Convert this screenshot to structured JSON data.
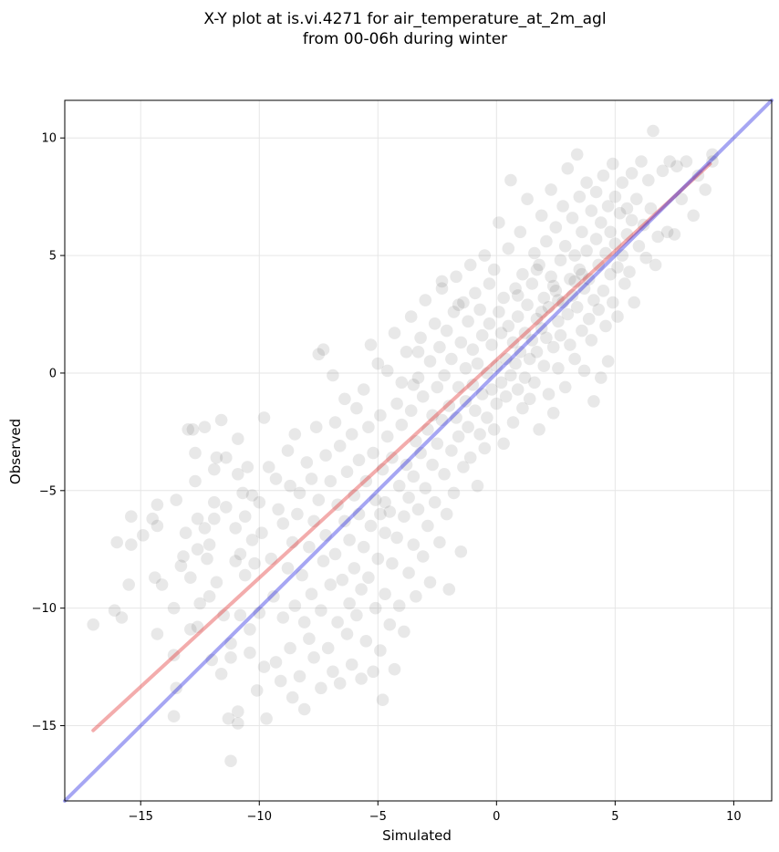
{
  "chart_data": {
    "type": "scatter",
    "title": [
      "X-Y plot at is.vi.4271 for air_temperature_at_2m_agl",
      "from 00-06h during winter"
    ],
    "xlabel": "Simulated",
    "ylabel": "Observed",
    "xlim": [
      -18.2,
      11.6
    ],
    "ylim": [
      -18.2,
      11.6
    ],
    "xticks": [
      -15,
      -10,
      -5,
      0,
      5,
      10
    ],
    "yticks": [
      -15,
      -10,
      -5,
      0,
      5,
      10
    ],
    "xtick_labels": [
      "−15",
      "−10",
      "−5",
      "0",
      "5",
      "10"
    ],
    "ytick_labels": [
      "−15",
      "−10",
      "−5",
      "0",
      "5",
      "10"
    ],
    "grid": true,
    "point_color": "#000000",
    "point_alpha": 0.09,
    "points": [
      [
        -17.0,
        -10.7
      ],
      [
        -15.8,
        -10.4
      ],
      [
        -16.1,
        -10.1
      ],
      [
        -15.5,
        -9.0
      ],
      [
        -16.0,
        -7.2
      ],
      [
        -15.4,
        -7.3
      ],
      [
        -15.4,
        -6.1
      ],
      [
        -14.9,
        -6.9
      ],
      [
        -14.5,
        -6.2
      ],
      [
        -14.3,
        -6.5
      ],
      [
        -14.3,
        -5.6
      ],
      [
        -14.4,
        -8.7
      ],
      [
        -14.1,
        -9.0
      ],
      [
        -14.3,
        -11.1
      ],
      [
        -13.6,
        -10.0
      ],
      [
        -13.6,
        -12.0
      ],
      [
        -13.5,
        -13.4
      ],
      [
        -13.6,
        -14.6
      ],
      [
        -13.5,
        -5.4
      ],
      [
        -13.3,
        -8.2
      ],
      [
        -13.2,
        -7.8
      ],
      [
        -13.1,
        -6.8
      ],
      [
        -13.0,
        -2.4
      ],
      [
        -12.8,
        -2.4
      ],
      [
        -12.7,
        -3.4
      ],
      [
        -12.7,
        -4.6
      ],
      [
        -12.6,
        -6.2
      ],
      [
        -12.6,
        -7.5
      ],
      [
        -12.9,
        -8.7
      ],
      [
        -12.9,
        -10.9
      ],
      [
        -12.6,
        -10.8
      ],
      [
        -12.5,
        -9.8
      ],
      [
        -12.3,
        -2.3
      ],
      [
        -12.3,
        -6.6
      ],
      [
        -12.2,
        -7.9
      ],
      [
        -12.1,
        -9.5
      ],
      [
        -12.0,
        -12.2
      ],
      [
        -12.1,
        -7.3
      ],
      [
        -11.9,
        -4.1
      ],
      [
        -11.9,
        -6.2
      ],
      [
        -11.9,
        -5.5
      ],
      [
        -11.8,
        -3.6
      ],
      [
        -11.8,
        -8.9
      ],
      [
        -11.6,
        -2.0
      ],
      [
        -11.4,
        -3.6
      ],
      [
        -11.4,
        -5.7
      ],
      [
        -11.5,
        -10.3
      ],
      [
        -11.6,
        -12.8
      ],
      [
        -11.3,
        -14.7
      ],
      [
        -11.2,
        -12.1
      ],
      [
        -11.2,
        -11.5
      ],
      [
        -11.0,
        -6.6
      ],
      [
        -11.0,
        -8.0
      ],
      [
        -10.9,
        -2.8
      ],
      [
        -10.9,
        -4.3
      ],
      [
        -10.9,
        -14.9
      ],
      [
        -10.9,
        -14.4
      ],
      [
        -10.8,
        -10.3
      ],
      [
        -10.8,
        -7.7
      ],
      [
        -10.7,
        -5.1
      ],
      [
        -10.6,
        -6.1
      ],
      [
        -10.6,
        -8.6
      ],
      [
        -10.5,
        -4.0
      ],
      [
        -10.4,
        -11.9
      ],
      [
        -10.4,
        -10.9
      ],
      [
        -10.3,
        -7.1
      ],
      [
        -10.3,
        -5.2
      ],
      [
        -10.2,
        -8.1
      ],
      [
        -10.1,
        -13.5
      ],
      [
        -10.0,
        -5.5
      ],
      [
        -10.0,
        -10.2
      ],
      [
        -9.9,
        -6.8
      ],
      [
        -9.8,
        -1.9
      ],
      [
        -9.8,
        -12.5
      ],
      [
        -9.7,
        -14.7
      ],
      [
        -9.6,
        -4.0
      ],
      [
        -9.5,
        -7.9
      ],
      [
        -9.4,
        -9.5
      ],
      [
        -9.3,
        -12.3
      ],
      [
        -9.3,
        -4.5
      ],
      [
        -9.2,
        -5.8
      ],
      [
        -9.1,
        -13.1
      ],
      [
        -9.0,
        -10.4
      ],
      [
        -9.0,
        -6.4
      ],
      [
        -8.8,
        -3.3
      ],
      [
        -8.8,
        -8.3
      ],
      [
        -8.7,
        -11.7
      ],
      [
        -8.7,
        -4.8
      ],
      [
        -8.6,
        -13.8
      ],
      [
        -8.6,
        -7.2
      ],
      [
        -8.5,
        -2.6
      ],
      [
        -8.5,
        -9.9
      ],
      [
        -8.4,
        -6.0
      ],
      [
        -8.3,
        -12.9
      ],
      [
        -8.3,
        -5.1
      ],
      [
        -8.2,
        -8.6
      ],
      [
        -8.1,
        -14.3
      ],
      [
        -8.1,
        -10.6
      ],
      [
        -8.0,
        -3.8
      ],
      [
        -7.9,
        -7.4
      ],
      [
        -7.9,
        -11.3
      ],
      [
        -7.8,
        -4.5
      ],
      [
        -7.8,
        -9.4
      ],
      [
        -7.7,
        -6.3
      ],
      [
        -7.7,
        -12.1
      ],
      [
        -7.6,
        -2.3
      ],
      [
        -7.5,
        -5.4
      ],
      [
        -7.5,
        0.8
      ],
      [
        -7.4,
        -10.1
      ],
      [
        -7.4,
        -13.4
      ],
      [
        -7.3,
        -8.0
      ],
      [
        -7.3,
        1.0
      ],
      [
        -7.2,
        -3.5
      ],
      [
        -7.2,
        -6.9
      ],
      [
        -7.1,
        -11.7
      ],
      [
        -7.0,
        -9.0
      ],
      [
        -7.0,
        -4.6
      ],
      [
        -6.9,
        -0.1
      ],
      [
        -6.9,
        -12.7
      ],
      [
        -6.8,
        -2.1
      ],
      [
        -6.8,
        -7.7
      ],
      [
        -6.7,
        -5.6
      ],
      [
        -6.7,
        -10.6
      ],
      [
        -6.6,
        -3.1
      ],
      [
        -6.6,
        -13.2
      ],
      [
        -6.5,
        -8.8
      ],
      [
        -6.4,
        -6.3
      ],
      [
        -6.4,
        -1.1
      ],
      [
        -6.3,
        -11.1
      ],
      [
        -6.3,
        -4.2
      ],
      [
        -6.2,
        -9.8
      ],
      [
        -6.2,
        -7.1
      ],
      [
        -6.1,
        -2.6
      ],
      [
        -6.1,
        -12.4
      ],
      [
        -6.0,
        -5.2
      ],
      [
        -6.0,
        -8.3
      ],
      [
        -5.9,
        -1.5
      ],
      [
        -5.9,
        -10.3
      ],
      [
        -5.8,
        -6.0
      ],
      [
        -5.8,
        -3.7
      ],
      [
        -5.7,
        -13.0
      ],
      [
        -5.7,
        -9.2
      ],
      [
        -5.6,
        -0.7
      ],
      [
        -5.6,
        -7.4
      ],
      [
        -5.5,
        -4.6
      ],
      [
        -5.5,
        -11.4
      ],
      [
        -5.4,
        -2.3
      ],
      [
        -5.4,
        -8.7
      ],
      [
        -5.3,
        1.2
      ],
      [
        -5.3,
        -6.5
      ],
      [
        -5.2,
        -12.7
      ],
      [
        -5.2,
        -3.4
      ],
      [
        -5.1,
        -10.0
      ],
      [
        -5.1,
        -5.4
      ],
      [
        -5.0,
        0.4
      ],
      [
        -5.0,
        -7.9
      ],
      [
        -4.9,
        -1.8
      ],
      [
        -4.9,
        -11.8
      ],
      [
        -4.8,
        -4.1
      ],
      [
        -4.8,
        -13.9
      ],
      [
        -4.7,
        -6.8
      ],
      [
        -4.7,
        -9.4
      ],
      [
        -4.6,
        -2.7
      ],
      [
        -4.6,
        0.1
      ],
      [
        -4.5,
        -5.9
      ],
      [
        -4.5,
        -10.7
      ],
      [
        -4.4,
        -3.6
      ],
      [
        -4.4,
        -8.1
      ],
      [
        -4.3,
        1.7
      ],
      [
        -4.3,
        -12.6
      ],
      [
        -4.2,
        -1.3
      ],
      [
        -4.2,
        -7.0
      ],
      [
        -4.1,
        -4.8
      ],
      [
        -4.1,
        -9.9
      ],
      [
        -4.0,
        -2.2
      ],
      [
        -4.0,
        -0.4
      ],
      [
        -3.9,
        -6.1
      ],
      [
        -3.9,
        -11.0
      ],
      [
        -3.8,
        0.9
      ],
      [
        -3.8,
        -3.9
      ],
      [
        -3.7,
        -8.5
      ],
      [
        -3.7,
        -5.3
      ],
      [
        -3.6,
        -1.6
      ],
      [
        -3.6,
        2.4
      ],
      [
        -3.5,
        -7.3
      ],
      [
        -3.5,
        -4.4
      ],
      [
        -3.4,
        -9.5
      ],
      [
        -3.4,
        -2.9
      ],
      [
        -3.3,
        -0.2
      ],
      [
        -3.3,
        -5.8
      ],
      [
        -3.2,
        1.5
      ],
      [
        -3.2,
        -3.4
      ],
      [
        -3.1,
        -7.8
      ],
      [
        -3.1,
        -1.0
      ],
      [
        -3.0,
        -4.9
      ],
      [
        -3.0,
        3.1
      ],
      [
        -2.9,
        -2.4
      ],
      [
        -2.9,
        -6.5
      ],
      [
        -2.8,
        0.5
      ],
      [
        -2.8,
        -8.9
      ],
      [
        -2.7,
        -3.9
      ],
      [
        -2.7,
        -1.8
      ],
      [
        -2.6,
        2.1
      ],
      [
        -2.6,
        -5.5
      ],
      [
        -2.5,
        -0.6
      ],
      [
        -2.5,
        -3.0
      ],
      [
        -2.4,
        1.1
      ],
      [
        -2.4,
        -7.2
      ],
      [
        -2.3,
        -2.0
      ],
      [
        -2.3,
        3.6
      ],
      [
        -2.2,
        -4.3
      ],
      [
        -2.2,
        -0.1
      ],
      [
        -2.1,
        -6.0
      ],
      [
        -2.1,
        1.8
      ],
      [
        -2.0,
        -1.4
      ],
      [
        -2.0,
        -9.2
      ],
      [
        -1.9,
        -3.3
      ],
      [
        -1.9,
        0.6
      ],
      [
        -1.8,
        2.6
      ],
      [
        -1.8,
        -5.1
      ],
      [
        -1.7,
        -1.9
      ],
      [
        -1.7,
        4.1
      ],
      [
        -1.6,
        -0.6
      ],
      [
        -1.6,
        -2.7
      ],
      [
        -1.5,
        1.3
      ],
      [
        -1.5,
        -7.6
      ],
      [
        -1.4,
        -4.0
      ],
      [
        -1.4,
        3.0
      ],
      [
        -1.3,
        -1.2
      ],
      [
        -1.3,
        0.2
      ],
      [
        -1.2,
        -2.3
      ],
      [
        -1.2,
        2.2
      ],
      [
        -1.1,
        -3.6
      ],
      [
        -1.1,
        4.6
      ],
      [
        -1.0,
        -0.5
      ],
      [
        -1.0,
        1.0
      ],
      [
        -0.9,
        -1.6
      ],
      [
        -0.9,
        3.4
      ],
      [
        -0.8,
        -4.8
      ],
      [
        -0.8,
        0.4
      ],
      [
        -0.7,
        -2.6
      ],
      [
        -0.7,
        2.7
      ],
      [
        -0.6,
        -0.9
      ],
      [
        -0.6,
        1.6
      ],
      [
        -0.5,
        -3.2
      ],
      [
        -0.5,
        5.0
      ],
      [
        -0.4,
        0.0
      ],
      [
        -0.4,
        -1.9
      ],
      [
        -0.3,
        2.1
      ],
      [
        -0.3,
        3.8
      ],
      [
        -0.2,
        -0.7
      ],
      [
        -0.2,
        1.2
      ],
      [
        -0.1,
        -2.4
      ],
      [
        -0.1,
        4.4
      ],
      [
        0.0,
        0.3
      ],
      [
        0.0,
        -1.3
      ],
      [
        0.1,
        2.6
      ],
      [
        0.1,
        6.4
      ],
      [
        0.2,
        -0.4
      ],
      [
        0.2,
        1.7
      ],
      [
        0.3,
        -3.0
      ],
      [
        0.3,
        3.2
      ],
      [
        0.4,
        0.6
      ],
      [
        0.4,
        -1.0
      ],
      [
        0.5,
        2.0
      ],
      [
        0.5,
        5.3
      ],
      [
        0.6,
        -0.1
      ],
      [
        0.6,
        8.2
      ],
      [
        0.7,
        1.3
      ],
      [
        0.7,
        -2.1
      ],
      [
        0.8,
        3.6
      ],
      [
        0.8,
        0.4
      ],
      [
        0.9,
        -0.7
      ],
      [
        0.9,
        2.4
      ],
      [
        1.0,
        6.0
      ],
      [
        1.0,
        0.9
      ],
      [
        1.1,
        -1.5
      ],
      [
        1.1,
        4.2
      ],
      [
        1.2,
        1.7
      ],
      [
        1.2,
        -0.2
      ],
      [
        1.3,
        2.9
      ],
      [
        1.3,
        7.4
      ],
      [
        1.4,
        0.6
      ],
      [
        1.4,
        -1.1
      ],
      [
        1.5,
        3.8
      ],
      [
        1.5,
        1.4
      ],
      [
        1.6,
        5.1
      ],
      [
        1.6,
        -0.4
      ],
      [
        1.7,
        2.3
      ],
      [
        1.7,
        0.9
      ],
      [
        1.8,
        4.6
      ],
      [
        1.8,
        -2.4
      ],
      [
        1.9,
        1.9
      ],
      [
        1.9,
        6.7
      ],
      [
        2.0,
        3.2
      ],
      [
        2.0,
        0.3
      ],
      [
        2.1,
        5.6
      ],
      [
        2.1,
        1.5
      ],
      [
        2.2,
        -0.9
      ],
      [
        2.2,
        2.8
      ],
      [
        2.3,
        7.8
      ],
      [
        2.3,
        4.1
      ],
      [
        2.4,
        1.1
      ],
      [
        2.4,
        -1.7
      ],
      [
        2.5,
        3.5
      ],
      [
        2.5,
        6.2
      ],
      [
        2.6,
        2.2
      ],
      [
        2.6,
        0.2
      ],
      [
        2.7,
        4.8
      ],
      [
        2.7,
        1.6
      ],
      [
        2.8,
        7.1
      ],
      [
        2.8,
        3.0
      ],
      [
        2.9,
        -0.6
      ],
      [
        2.9,
        5.4
      ],
      [
        3.0,
        2.5
      ],
      [
        3.0,
        8.7
      ],
      [
        3.1,
        4.0
      ],
      [
        3.1,
        1.2
      ],
      [
        3.2,
        6.6
      ],
      [
        3.2,
        3.3
      ],
      [
        3.3,
        0.6
      ],
      [
        3.3,
        5.0
      ],
      [
        3.4,
        9.3
      ],
      [
        3.4,
        2.8
      ],
      [
        3.5,
        7.5
      ],
      [
        3.5,
        4.4
      ],
      [
        3.6,
        1.8
      ],
      [
        3.6,
        6.0
      ],
      [
        3.7,
        3.6
      ],
      [
        3.7,
        0.1
      ],
      [
        3.8,
        8.1
      ],
      [
        3.8,
        5.2
      ],
      [
        3.9,
        2.3
      ],
      [
        3.9,
        4.0
      ],
      [
        4.0,
        6.9
      ],
      [
        4.0,
        1.4
      ],
      [
        4.1,
        3.1
      ],
      [
        4.1,
        -1.2
      ],
      [
        4.2,
        5.7
      ],
      [
        4.2,
        7.7
      ],
      [
        4.3,
        2.7
      ],
      [
        4.3,
        4.6
      ],
      [
        4.4,
        -0.2
      ],
      [
        4.4,
        6.4
      ],
      [
        4.5,
        3.5
      ],
      [
        4.5,
        8.4
      ],
      [
        4.6,
        5.1
      ],
      [
        4.6,
        2.0
      ],
      [
        4.7,
        7.1
      ],
      [
        4.7,
        0.5
      ],
      [
        4.8,
        4.2
      ],
      [
        4.8,
        6.0
      ],
      [
        4.9,
        3.0
      ],
      [
        4.9,
        8.9
      ],
      [
        5.0,
        5.5
      ],
      [
        5.0,
        7.5
      ],
      [
        5.1,
        4.5
      ],
      [
        5.1,
        2.4
      ],
      [
        5.2,
        6.8
      ],
      [
        5.3,
        5.0
      ],
      [
        5.3,
        8.1
      ],
      [
        5.4,
        3.8
      ],
      [
        5.5,
        7.0
      ],
      [
        5.5,
        5.9
      ],
      [
        5.6,
        4.3
      ],
      [
        5.7,
        8.5
      ],
      [
        5.7,
        6.5
      ],
      [
        5.8,
        3.0
      ],
      [
        5.9,
        7.4
      ],
      [
        6.0,
        5.4
      ],
      [
        6.1,
        9.0
      ],
      [
        6.2,
        6.3
      ],
      [
        6.3,
        4.9
      ],
      [
        6.4,
        8.2
      ],
      [
        6.5,
        7.0
      ],
      [
        6.6,
        10.3
      ],
      [
        6.7,
        4.6
      ],
      [
        6.8,
        5.8
      ],
      [
        7.0,
        8.6
      ],
      [
        7.2,
        6.0
      ],
      [
        7.3,
        9.0
      ],
      [
        7.5,
        5.9
      ],
      [
        7.6,
        8.8
      ],
      [
        7.8,
        7.4
      ],
      [
        8.0,
        9.0
      ],
      [
        8.3,
        6.7
      ],
      [
        8.5,
        8.4
      ],
      [
        8.8,
        7.8
      ],
      [
        9.1,
        9.0
      ],
      [
        9.1,
        9.3
      ],
      [
        -11.2,
        -16.5
      ],
      [
        -2.3,
        3.9
      ],
      [
        -1.6,
        2.9
      ],
      [
        -4.7,
        -5.5
      ],
      [
        -4.9,
        -6.0
      ],
      [
        -3.5,
        -0.5
      ],
      [
        -3.3,
        0.9
      ],
      [
        0.9,
        3.3
      ],
      [
        1.7,
        4.4
      ],
      [
        2.4,
        3.7
      ],
      [
        3.3,
        3.9
      ],
      [
        3.6,
        4.2
      ],
      [
        1.9,
        2.6
      ],
      [
        2.6,
        3.1
      ]
    ],
    "regression_line": {
      "name": "",
      "color": "#e03030",
      "alpha": 0.4,
      "x": [
        -17.0,
        9.0
      ],
      "y": [
        -15.2,
        8.9
      ]
    },
    "identity_line": {
      "name": "",
      "color": "#0000dd",
      "alpha": 0.35,
      "x": [
        -18.2,
        11.6
      ],
      "y": [
        -18.2,
        11.6
      ]
    }
  }
}
